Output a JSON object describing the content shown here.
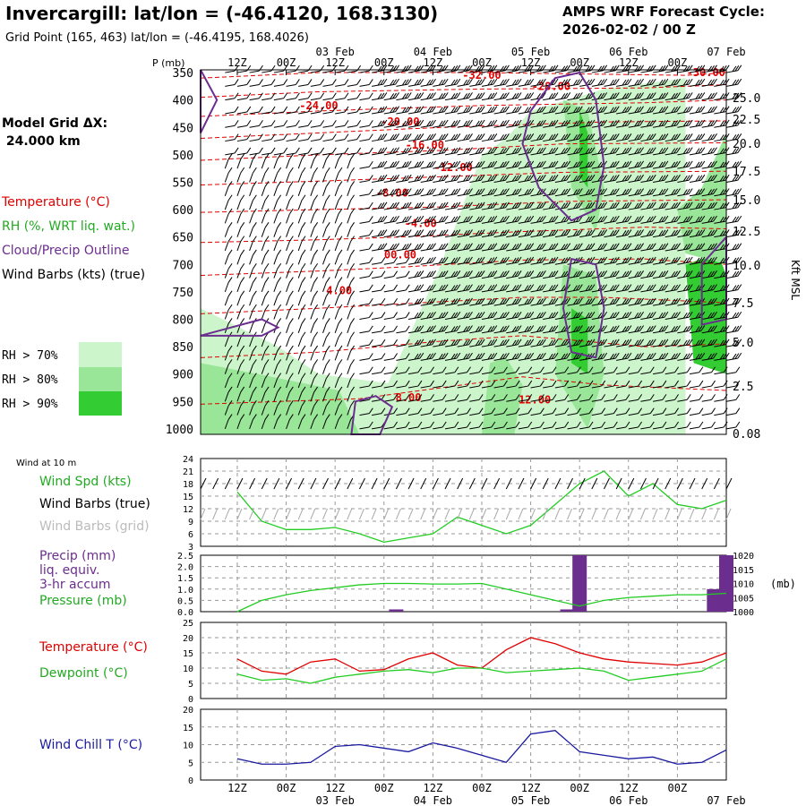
{
  "header": {
    "title": "Invercargill:  lat/lon = (-46.4120, 168.3130)",
    "subtitle": "Grid Point (165, 463) lat/lon = (-46.4195, 168.4026)",
    "cycle_line1": "AMPS WRF Forecast Cycle:",
    "cycle_line2": "2026-02-02 / 00  Z"
  },
  "left_legend": {
    "grid_label": "Model Grid ΔX:",
    "grid_value": " 24.000 km",
    "temperature": "Temperature (°C)",
    "rh": "RH (%, WRT liq. wat.)",
    "cloud": "Cloud/Precip Outline",
    "wind": "Wind Barbs (kts) (true)",
    "rh70": "RH > 70%",
    "rh80": "RH > 80%",
    "rh90": "RH > 90%",
    "colors": {
      "rh70": "#ccf5cc",
      "rh80": "#99e699",
      "rh90": "#33cc33",
      "temp": "#ff0000",
      "cloud": "#7b2d8e"
    }
  },
  "time_axis": {
    "hour_labels": [
      "12Z",
      "00Z",
      "12Z",
      "00Z",
      "12Z",
      "00Z",
      "12Z",
      "00Z",
      "12Z",
      "00Z"
    ],
    "day_labels": [
      "03 Feb",
      "04 Feb",
      "05 Feb",
      "06 Feb",
      "07 Feb"
    ]
  },
  "chart_data": [
    {
      "type": "heatmap",
      "name": "cross-section",
      "pressure_label": "P (mb)",
      "kft_label": "Kft MSL",
      "pressure_levels": [
        "350",
        "400",
        "450",
        "500",
        "550",
        "600",
        "650",
        "700",
        "750",
        "800",
        "850",
        "900",
        "950",
        "1000"
      ],
      "kft_levels": [
        "25.0",
        "22.5",
        "20.0",
        "17.5",
        "15.0",
        "12.5",
        "10.0",
        "7.5",
        "5.0",
        "2.5",
        "0.08"
      ],
      "temperature_contours": [
        "-32.00",
        "-28.00",
        "-30.00",
        "-24.00",
        "-20.00",
        "-16.00",
        "-12.00",
        "-8.00",
        "-4.00",
        "00.00",
        "4.00",
        "8.00",
        "12.00"
      ]
    },
    {
      "type": "line",
      "name": "wind",
      "panel_title": "Wind at 10 m",
      "labels": [
        "Wind Spd (kts)",
        "Wind Barbs (true)",
        "Wind Barbs (grid)"
      ],
      "y_ticks": [
        "24",
        "21",
        "18",
        "15",
        "12",
        "9",
        "6",
        "3"
      ],
      "ylim": [
        3,
        24
      ],
      "x_hours": [
        0,
        6,
        12,
        18,
        24,
        30,
        36,
        42,
        48,
        54,
        60,
        66,
        72,
        78,
        84,
        90,
        96,
        102,
        108,
        114,
        120
      ],
      "wind_speed": [
        16,
        9,
        7,
        7,
        7.5,
        6,
        4,
        5,
        6,
        10,
        8,
        6,
        8,
        13,
        18,
        21,
        15,
        18,
        13,
        12,
        14
      ]
    },
    {
      "type": "bar",
      "name": "precip-pressure",
      "labels": [
        "Precip (mm)",
        "liq. equiv.",
        "3-hr accum",
        "Pressure (mb)"
      ],
      "precip_ticks": [
        "2.5",
        "2.0",
        "1.5",
        "1.0",
        "0.5",
        "0.0"
      ],
      "pressure_ticks": [
        "1020",
        "1015",
        "1010",
        "1005",
        "1000"
      ],
      "pressure_unit": "(mb)",
      "precip_ylim": [
        0,
        2.5
      ],
      "pressure_ylim": [
        1000,
        1020
      ],
      "x_hours": [
        0,
        6,
        12,
        18,
        24,
        30,
        36,
        42,
        48,
        54,
        60,
        66,
        72,
        78,
        84,
        90,
        96,
        102,
        108,
        114,
        120
      ],
      "pressure": [
        1000,
        1004,
        1006,
        1007.5,
        1008.5,
        1009.5,
        1010,
        1010,
        1009.8,
        1009.8,
        1010,
        1008,
        1006,
        1004,
        1002,
        1004,
        1005,
        1005.5,
        1006,
        1006,
        1006.5
      ],
      "precip_bars": [
        {
          "hour": 39,
          "value": 0.1
        },
        {
          "hour": 81,
          "value": 0.1
        },
        {
          "hour": 84,
          "value": 2.5
        },
        {
          "hour": 117,
          "value": 1.0
        },
        {
          "hour": 120,
          "value": 2.5
        }
      ]
    },
    {
      "type": "line",
      "name": "temperature",
      "labels": [
        "Temperature (°C)",
        "Dewpoint (°C)"
      ],
      "y_ticks": [
        "25",
        "20",
        "15",
        "10",
        "5",
        "0"
      ],
      "ylim": [
        0,
        25
      ],
      "x_hours": [
        0,
        6,
        12,
        18,
        24,
        30,
        36,
        42,
        48,
        54,
        60,
        66,
        72,
        78,
        84,
        90,
        96,
        102,
        108,
        114,
        120
      ],
      "temperature": [
        13,
        9,
        8,
        12,
        13,
        9,
        9.5,
        13,
        15,
        11,
        10,
        16,
        20,
        18,
        15,
        13,
        12,
        11.5,
        11,
        12,
        15
      ],
      "dewpoint": [
        8,
        6,
        6.5,
        5,
        7,
        8,
        9,
        9.5,
        8.5,
        10,
        10,
        8.5,
        9,
        9.5,
        10,
        9,
        6,
        7,
        8,
        9,
        13
      ]
    },
    {
      "type": "line",
      "name": "wind-chill",
      "labels": [
        "Wind Chill T (°C)"
      ],
      "y_ticks": [
        "20",
        "15",
        "10",
        "5",
        "0"
      ],
      "ylim": [
        0,
        20
      ],
      "x_hours": [
        0,
        6,
        12,
        18,
        24,
        30,
        36,
        42,
        48,
        54,
        60,
        66,
        72,
        78,
        84,
        90,
        96,
        102,
        108,
        114,
        120
      ],
      "windchill": [
        6,
        4.5,
        4.5,
        5,
        9.5,
        10,
        9,
        8,
        10.5,
        9,
        7,
        5,
        13,
        14,
        8,
        7,
        6,
        6.5,
        4.5,
        5,
        8.5
      ]
    }
  ]
}
